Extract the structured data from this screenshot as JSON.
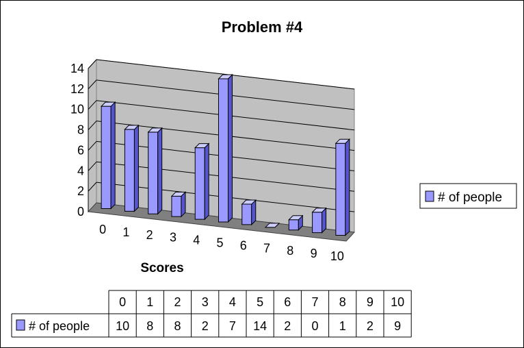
{
  "chart_data": {
    "type": "bar",
    "title": "Problem #4",
    "xlabel": "Scores",
    "ylabel": "",
    "ylim": [
      0,
      14
    ],
    "yticks": [
      "0",
      "2",
      "4",
      "6",
      "8",
      "10",
      "12",
      "14"
    ],
    "categories": [
      "0",
      "1",
      "2",
      "3",
      "4",
      "5",
      "6",
      "7",
      "8",
      "9",
      "10"
    ],
    "series": [
      {
        "name": "# of people",
        "values": [
          10,
          8,
          8,
          2,
          7,
          14,
          2,
          0,
          1,
          2,
          9
        ]
      }
    ],
    "legend_position": "right",
    "grid": true,
    "three_d": true,
    "data_table": true,
    "colors": {
      "bar_front": "#9999ff",
      "bar_side": "#5555cc",
      "bar_top": "#ccccff",
      "back_wall": "#c0c0c0",
      "floor": "#808080",
      "gridline": "#000000"
    }
  }
}
